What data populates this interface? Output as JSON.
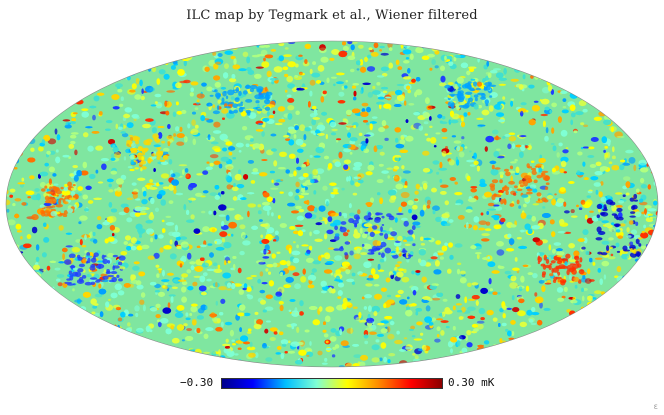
{
  "title": "ILC map by Tegmark et al., Wiener filtered",
  "colorbar": {
    "min_label": "−0.30",
    "max_label": "0.30 mK",
    "range": [
      -0.3,
      0.3
    ],
    "unit": "mK",
    "colormap": [
      "#00008b",
      "#0000ff",
      "#00bfff",
      "#7fffd4",
      "#ffff00",
      "#ff8c00",
      "#ff0000",
      "#8b0000"
    ]
  },
  "map": {
    "projection": "mollweide",
    "base_color": "#7fe6a0"
  }
}
